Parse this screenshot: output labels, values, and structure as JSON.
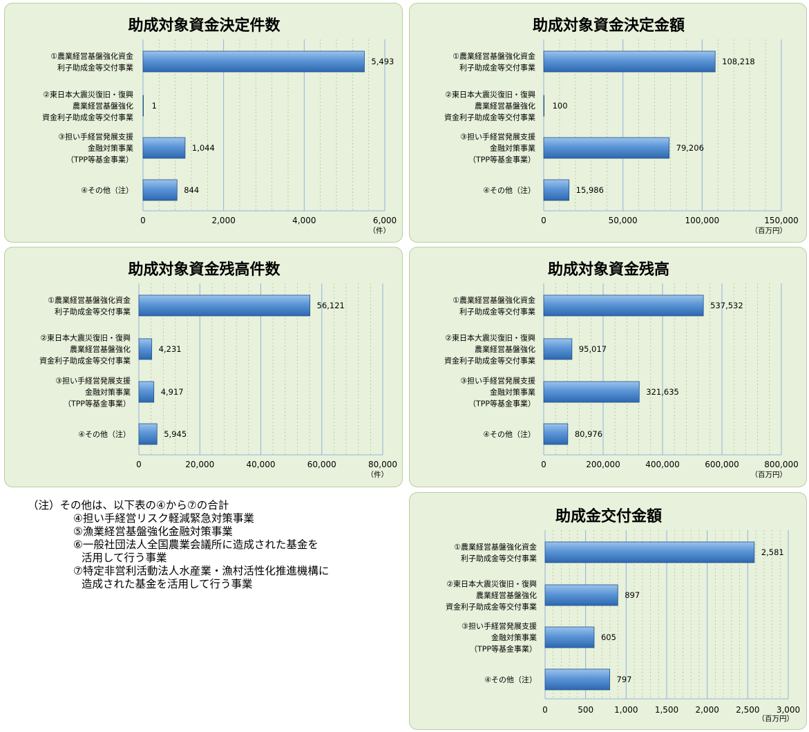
{
  "note": {
    "header": "（注）その他は、以下表の④から⑦の合計",
    "items": [
      "④担い手経営リスク軽減緊急対策事業",
      "⑤漁業経営基盤強化金融対策事業",
      "⑥一般社団法人全国農業会議所に造成された基金を",
      "活用して行う事業",
      "⑦特定非営利活動法人水産業・漁村活性化推進機構に",
      "造成された基金を活用して行う事業"
    ]
  },
  "chart_data": [
    {
      "type": "bar",
      "orientation": "horizontal",
      "title": "助成対象資金決定件数",
      "categories": [
        [
          "①農業経営基盤強化資金",
          "利子助成金等交付事業"
        ],
        [
          "②東日本大震災復旧・復興",
          "農業経営基盤強化",
          "資金利子助成金等交付事業"
        ],
        [
          "③担い手経営発展支援",
          "金融対策事業",
          "（TPP等基金事業）"
        ],
        [
          "④その他（注）"
        ]
      ],
      "values": [
        5493,
        1,
        1044,
        844
      ],
      "value_labels": [
        "5,493",
        "1",
        "1,044",
        "844"
      ],
      "xlim": [
        0,
        6000
      ],
      "ticks": [
        0,
        2000,
        4000,
        6000
      ],
      "tick_labels": [
        "0",
        "2,000",
        "4,000",
        "6,000"
      ],
      "unit": "（件）",
      "grid": true
    },
    {
      "type": "bar",
      "orientation": "horizontal",
      "title": "助成対象資金決定金額",
      "categories": [
        [
          "①農業経営基盤強化資金",
          "利子助成金等交付事業"
        ],
        [
          "②東日本大震災復旧・復興",
          "農業経営基盤強化",
          "資金利子助成金等交付事業"
        ],
        [
          "③担い手経営発展支援",
          "金融対策事業",
          "（TPP等基金事業）"
        ],
        [
          "④その他（注）"
        ]
      ],
      "values": [
        108218,
        100,
        79206,
        15986
      ],
      "value_labels": [
        "108,218",
        "100",
        "79,206",
        "15,986"
      ],
      "xlim": [
        0,
        150000
      ],
      "ticks": [
        0,
        50000,
        100000,
        150000
      ],
      "tick_labels": [
        "0",
        "50,000",
        "100,000",
        "150,000"
      ],
      "unit": "（百万円）",
      "grid": true
    },
    {
      "type": "bar",
      "orientation": "horizontal",
      "title": "助成対象資金残高件数",
      "categories": [
        [
          "①農業経営基盤強化資金",
          "利子助成金等交付事業"
        ],
        [
          "②東日本大震災復旧・復興",
          "農業経営基盤強化",
          "資金利子助成金等交付事業"
        ],
        [
          "③担い手経営発展支援",
          "金融対策事業",
          "（TPP等基金事業）"
        ],
        [
          "④その他（注）"
        ]
      ],
      "values": [
        56121,
        4231,
        4917,
        5945
      ],
      "value_labels": [
        "56,121",
        "4,231",
        "4,917",
        "5,945"
      ],
      "xlim": [
        0,
        80000
      ],
      "ticks": [
        0,
        20000,
        40000,
        60000,
        80000
      ],
      "tick_labels": [
        "0",
        "20,000",
        "40,000",
        "60,000",
        "80,000"
      ],
      "unit": "（件）",
      "grid": true
    },
    {
      "type": "bar",
      "orientation": "horizontal",
      "title": "助成対象資金残高",
      "categories": [
        [
          "①農業経営基盤強化資金",
          "利子助成金等交付事業"
        ],
        [
          "②東日本大震災復旧・復興",
          "農業経営基盤強化",
          "資金利子助成金等交付事業"
        ],
        [
          "③担い手経営発展支援",
          "金融対策事業",
          "（TPP等基金事業）"
        ],
        [
          "④その他（注）"
        ]
      ],
      "values": [
        537532,
        95017,
        321635,
        80976
      ],
      "value_labels": [
        "537,532",
        "95,017",
        "321,635",
        "80,976"
      ],
      "xlim": [
        0,
        800000
      ],
      "ticks": [
        0,
        200000,
        400000,
        600000,
        800000
      ],
      "tick_labels": [
        "0",
        "200,000",
        "400,000",
        "600,000",
        "800,000"
      ],
      "unit": "（百万円）",
      "grid": true
    },
    {
      "type": "bar",
      "orientation": "horizontal",
      "title": "助成金交付金額",
      "categories": [
        [
          "①農業経営基盤強化資金",
          "利子助成金等交付事業"
        ],
        [
          "②東日本大震災復旧・復興",
          "農業経営基盤強化",
          "資金利子助成金等交付事業"
        ],
        [
          "③担い手経営発展支援",
          "金融対策事業",
          "（TPP等基金事業）"
        ],
        [
          "④その他（注）"
        ]
      ],
      "values": [
        2581,
        897,
        605,
        797
      ],
      "value_labels": [
        "2,581",
        "897",
        "605",
        "797"
      ],
      "xlim": [
        0,
        3000
      ],
      "ticks": [
        0,
        500,
        1000,
        1500,
        2000,
        2500,
        3000
      ],
      "tick_labels": [
        "0",
        "500",
        "1,000",
        "1,500",
        "2,000",
        "2,500",
        "3,000"
      ],
      "unit": "（百万円）",
      "grid": true
    }
  ]
}
